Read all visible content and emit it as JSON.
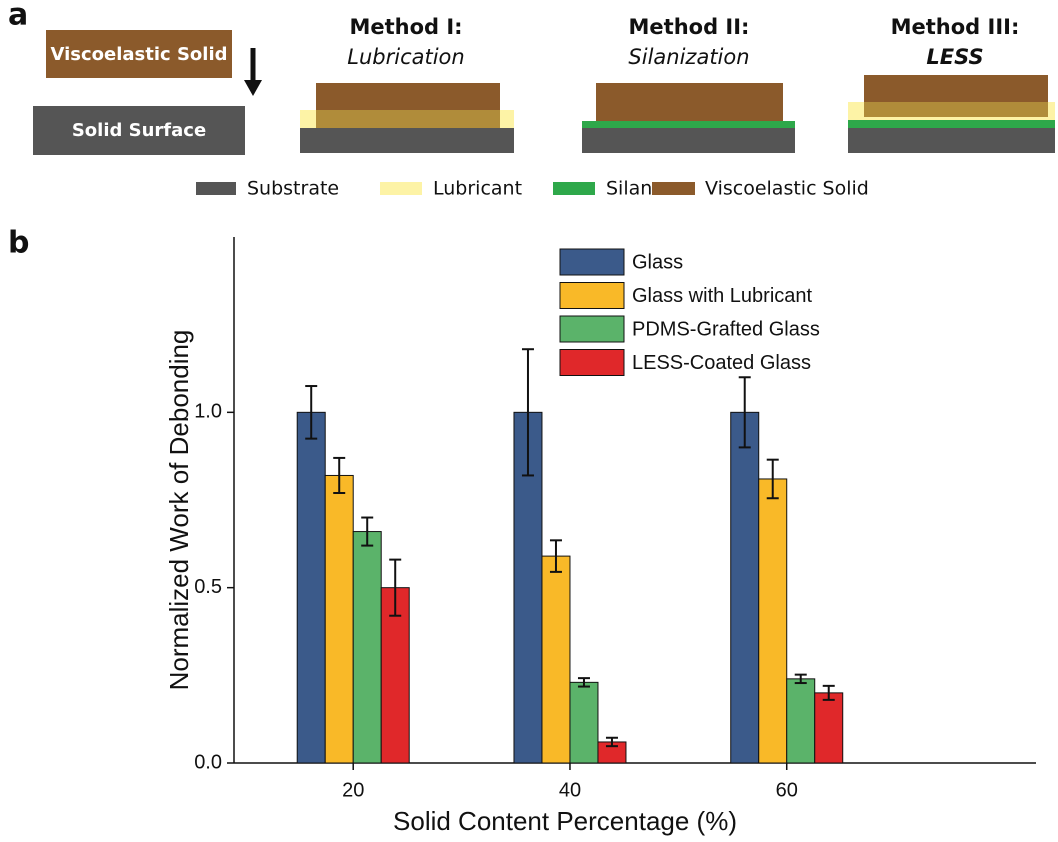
{
  "panel_a": {
    "label": "a",
    "setup": {
      "solid": "Viscoelastic Solid",
      "surface": "Solid Surface"
    },
    "methods": [
      {
        "title": "Method I:",
        "name": "Lubrication"
      },
      {
        "title": "Method II:",
        "name": "Silanization"
      },
      {
        "title": "Method III:",
        "name": "LESS"
      }
    ],
    "legend": [
      "Substrate",
      "Lubricant",
      "Silane",
      "Viscoelastic Solid"
    ]
  },
  "panel_b_label": "b",
  "chart_data": {
    "type": "bar",
    "x_label": "Solid Content Percentage (%)",
    "y_label": "Normalized Work of Debonding",
    "x": [
      20,
      40,
      60
    ],
    "xlim": [
      9,
      83
    ],
    "xticks": [
      20,
      40,
      60
    ],
    "ylim": [
      0,
      1.5
    ],
    "yticks": [
      {
        "value": 0,
        "label": "0.0"
      },
      {
        "value": 0.5,
        "label": "0.5"
      },
      {
        "value": 1,
        "label": "1.0"
      }
    ],
    "legend": "upper right",
    "series": [
      {
        "name": "Glass",
        "color": "#3b5a8a",
        "values": [
          1.0,
          1.0,
          1.0
        ],
        "errors": [
          0.075,
          0.18,
          0.1
        ]
      },
      {
        "name": "Glass with Lubricant",
        "color": "#f9b928",
        "values": [
          0.82,
          0.59,
          0.81
        ],
        "errors": [
          0.05,
          0.045,
          0.055
        ]
      },
      {
        "name": "PDMS-Grafted Glass",
        "color": "#5bb36a",
        "values": [
          0.66,
          0.23,
          0.24
        ],
        "errors": [
          0.04,
          0.012,
          0.012
        ]
      },
      {
        "name": "LESS-Coated Glass",
        "color": "#e0282a",
        "values": [
          0.5,
          0.06,
          0.2
        ],
        "errors": [
          0.08,
          0.012,
          0.02
        ]
      }
    ]
  }
}
